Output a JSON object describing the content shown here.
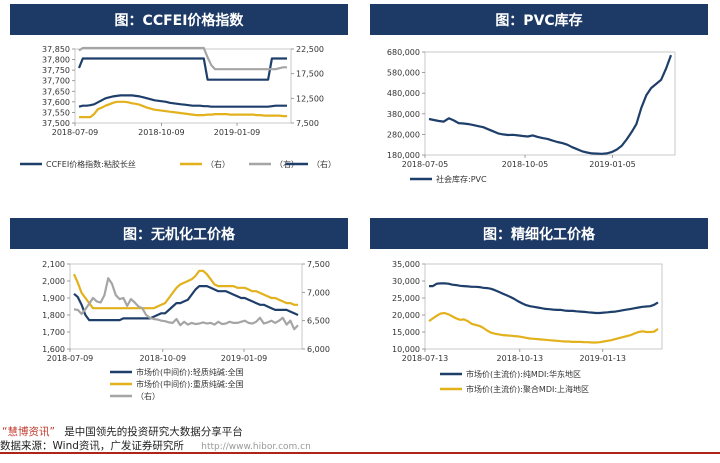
{
  "colors": {
    "navy": "#1f3f6b",
    "gold": "#e2b11c",
    "gray": "#a5a5a5",
    "banner": "#1d3a66",
    "red": "#c0392b"
  },
  "chart_data": [
    {
      "id": "ccfei",
      "type": "line",
      "title": "图：CCFEI价格指数",
      "x_ticks": [
        "2018-07-09",
        "2018-10-09",
        "2019-01-09"
      ],
      "left_axis": {
        "ticks": [
          37500,
          37550,
          37600,
          37650,
          37700,
          37750,
          37800,
          37850
        ],
        "labels": [
          "37,500",
          "37,550",
          "37,600",
          "37,650",
          "37,700",
          "37,750",
          "37,800",
          "37,850"
        ],
        "ylim": [
          37500,
          37850
        ]
      },
      "right_axis": {
        "ticks": [
          7500,
          12500,
          17500,
          22500
        ],
        "labels": [
          "7,500",
          "12,500",
          "17,500",
          "22,500"
        ],
        "ylim": [
          7500,
          22500
        ]
      },
      "n": 56,
      "series": [
        {
          "name": "CCFEI价格指数:粘胶长丝",
          "axis": "left",
          "color": "navy",
          "values": [
            37760,
            37805,
            37805,
            37805,
            37805,
            37805,
            37805,
            37805,
            37805,
            37805,
            37805,
            37805,
            37805,
            37805,
            37805,
            37805,
            37805,
            37805,
            37805,
            37805,
            37805,
            37805,
            37805,
            37805,
            37805,
            37805,
            37805,
            37805,
            37805,
            37805,
            37805,
            37805,
            37805,
            37805,
            37705,
            37705,
            37705,
            37705,
            37705,
            37705,
            37705,
            37705,
            37705,
            37705,
            37705,
            37705,
            37705,
            37705,
            37705,
            37705,
            37705,
            37805,
            37805,
            37805,
            37805,
            37805
          ]
        },
        {
          "name": "（右）",
          "axis": "right",
          "color": "gold",
          "values": [
            8700,
            8700,
            8700,
            8700,
            9300,
            10300,
            10600,
            11000,
            11300,
            11600,
            11800,
            11800,
            11800,
            11700,
            11500,
            11400,
            11200,
            10900,
            10600,
            10400,
            10200,
            10100,
            10000,
            9900,
            9800,
            9700,
            9600,
            9500,
            9400,
            9300,
            9200,
            9100,
            9100,
            9100,
            9200,
            9200,
            9300,
            9300,
            9300,
            9300,
            9200,
            9200,
            9200,
            9200,
            9200,
            9200,
            9200,
            9100,
            9100,
            9000,
            9000,
            9000,
            9000,
            9000,
            8900,
            8900
          ]
        },
        {
          "name": "（右）",
          "axis": "right",
          "color": "gray",
          "values": [
            22200,
            22700,
            22700,
            22700,
            22700,
            22700,
            22700,
            22700,
            22700,
            22700,
            22700,
            22700,
            22700,
            22700,
            22700,
            22700,
            22700,
            22700,
            22700,
            22700,
            22700,
            22700,
            22700,
            22700,
            22700,
            22700,
            22700,
            22700,
            22700,
            22700,
            22700,
            22700,
            22700,
            22700,
            20800,
            19200,
            18400,
            18400,
            18400,
            18400,
            18400,
            18400,
            18400,
            18400,
            18400,
            18400,
            18400,
            18400,
            18400,
            18400,
            18400,
            18400,
            18400,
            18600,
            18800,
            18800
          ]
        },
        {
          "name": "（右）",
          "axis": "right",
          "color": "navy",
          "values": [
            10800,
            11000,
            11000,
            11100,
            11300,
            11700,
            12100,
            12500,
            12700,
            12900,
            13000,
            13100,
            13100,
            13100,
            13100,
            13000,
            12900,
            12700,
            12500,
            12300,
            12100,
            12000,
            11900,
            11800,
            11600,
            11500,
            11400,
            11300,
            11200,
            11100,
            11000,
            11000,
            11000,
            10900,
            10900,
            10800,
            10800,
            10800,
            10800,
            10800,
            10800,
            10800,
            10800,
            10800,
            10800,
            10800,
            10800,
            10800,
            10800,
            10800,
            10800,
            10900,
            11000,
            11000,
            11000,
            11000
          ]
        }
      ]
    },
    {
      "id": "pvc",
      "type": "line",
      "title": "图：PVC库存",
      "x_ticks": [
        "2018-07-05",
        "2018-10-05",
        "2019-01-05"
      ],
      "left_axis": {
        "ticks": [
          180000,
          280000,
          380000,
          480000,
          580000,
          680000
        ],
        "labels": [
          "180,000",
          "280,000",
          "380,000",
          "480,000",
          "580,000",
          "680,000"
        ],
        "ylim": [
          180000,
          680000
        ]
      },
      "n": 50,
      "series": [
        {
          "name": "社会库存:PVC",
          "axis": "left",
          "color": "navy",
          "values": [
            355000,
            350000,
            345000,
            342000,
            358000,
            348000,
            335000,
            333000,
            330000,
            325000,
            320000,
            315000,
            305000,
            295000,
            285000,
            280000,
            277000,
            278000,
            275000,
            272000,
            270000,
            275000,
            268000,
            262000,
            258000,
            250000,
            243000,
            238000,
            230000,
            218000,
            208000,
            198000,
            192000,
            188000,
            187000,
            186000,
            188000,
            194000,
            206000,
            224000,
            255000,
            290000,
            330000,
            410000,
            470000,
            505000,
            525000,
            545000,
            600000,
            665000
          ]
        }
      ]
    },
    {
      "id": "inorganic",
      "type": "line",
      "title": "图：无机化工价格",
      "x_ticks": [
        "2018-07-09",
        "2018-10-09",
        "2019-01-09"
      ],
      "left_axis": {
        "ticks": [
          1600,
          1700,
          1800,
          1900,
          2000,
          2100
        ],
        "labels": [
          "1,600",
          "1,700",
          "1,800",
          "1,900",
          "2,000",
          "2,100"
        ],
        "ylim": [
          1600,
          2100
        ]
      },
      "right_axis": {
        "ticks": [
          6000,
          6500,
          7000,
          7500
        ],
        "labels": [
          "6,000",
          "6,500",
          "7,000",
          "7,500"
        ],
        "ylim": [
          6000,
          7500
        ]
      },
      "n": 60,
      "series": [
        {
          "name": "市场价(中间价):轻质纯碱:全国",
          "axis": "left",
          "color": "navy",
          "values": [
            1925,
            1905,
            1860,
            1800,
            1770,
            1770,
            1770,
            1770,
            1770,
            1770,
            1770,
            1770,
            1770,
            1780,
            1780,
            1780,
            1780,
            1780,
            1780,
            1780,
            1780,
            1790,
            1800,
            1810,
            1810,
            1830,
            1850,
            1870,
            1870,
            1880,
            1890,
            1920,
            1950,
            1970,
            1970,
            1970,
            1960,
            1950,
            1940,
            1940,
            1940,
            1930,
            1920,
            1910,
            1900,
            1900,
            1890,
            1880,
            1870,
            1860,
            1860,
            1850,
            1840,
            1830,
            1830,
            1830,
            1830,
            1820,
            1810,
            1800
          ]
        },
        {
          "name": "市场价(中间价):重质纯碱:全国",
          "axis": "left",
          "color": "gold",
          "values": [
            2040,
            1990,
            1930,
            1900,
            1870,
            1840,
            1840,
            1840,
            1840,
            1840,
            1840,
            1840,
            1840,
            1840,
            1840,
            1840,
            1840,
            1840,
            1840,
            1840,
            1840,
            1840,
            1850,
            1860,
            1870,
            1900,
            1930,
            1960,
            1980,
            1990,
            2000,
            2010,
            2030,
            2060,
            2060,
            2040,
            2010,
            1980,
            1970,
            1970,
            1970,
            1970,
            1970,
            1960,
            1960,
            1960,
            1950,
            1940,
            1940,
            1930,
            1920,
            1910,
            1900,
            1900,
            1890,
            1880,
            1870,
            1870,
            1860,
            1860
          ]
        },
        {
          "name": "（右）",
          "axis": "right",
          "color": "gray",
          "values": [
            6700,
            6690,
            6620,
            6700,
            6800,
            6900,
            6840,
            6820,
            6950,
            7250,
            7150,
            6950,
            6880,
            6900,
            6760,
            6880,
            6820,
            6750,
            6720,
            6600,
            6550,
            6530,
            6520,
            6500,
            6490,
            6470,
            6460,
            6530,
            6420,
            6480,
            6430,
            6460,
            6440,
            6450,
            6470,
            6450,
            6460,
            6430,
            6480,
            6440,
            6450,
            6480,
            6460,
            6460,
            6480,
            6500,
            6460,
            6450,
            6480,
            6550,
            6450,
            6470,
            6500,
            6460,
            6500,
            6550,
            6430,
            6500,
            6350,
            6420
          ]
        }
      ]
    },
    {
      "id": "fine",
      "type": "line",
      "title": "图：精细化工价格",
      "x_ticks": [
        "2018-07-13",
        "2018-10-13",
        "2019-01-13"
      ],
      "left_axis": {
        "ticks": [
          10000,
          15000,
          20000,
          25000,
          30000,
          35000
        ],
        "labels": [
          "10,000",
          "15,000",
          "20,000",
          "25,000",
          "30,000",
          "35,000"
        ],
        "ylim": [
          10000,
          35000
        ]
      },
      "n": 60,
      "series": [
        {
          "name": "市场价(主流价):纯MDI:华东地区",
          "axis": "left",
          "color": "navy",
          "values": [
            28500,
            28500,
            29200,
            29300,
            29300,
            29200,
            28900,
            28800,
            28600,
            28500,
            28400,
            28300,
            28300,
            28200,
            28000,
            27900,
            27700,
            27300,
            26800,
            26300,
            25800,
            25300,
            24700,
            24000,
            23400,
            22900,
            22600,
            22400,
            22200,
            22000,
            21800,
            21700,
            21600,
            21500,
            21500,
            21300,
            21200,
            21200,
            21100,
            21000,
            20900,
            20800,
            20700,
            20600,
            20600,
            20700,
            20800,
            20900,
            21000,
            21200,
            21400,
            21600,
            21800,
            22000,
            22200,
            22400,
            22500,
            22600,
            23000,
            23700
          ]
        },
        {
          "name": "市场价(主流价):聚合MDI:上海地区",
          "axis": "left",
          "color": "gold",
          "values": [
            18200,
            19000,
            19800,
            20400,
            20600,
            20200,
            19600,
            19000,
            18600,
            18700,
            18200,
            17400,
            17100,
            16800,
            16200,
            15400,
            14800,
            14500,
            14300,
            14100,
            14000,
            13900,
            13800,
            13700,
            13500,
            13300,
            13100,
            13000,
            12900,
            12800,
            12700,
            12600,
            12500,
            12400,
            12300,
            12200,
            12200,
            12100,
            12100,
            12100,
            12000,
            12000,
            11900,
            11900,
            12000,
            12200,
            12400,
            12600,
            12900,
            13200,
            13500,
            13800,
            14100,
            14600,
            15000,
            15200,
            15000,
            15000,
            15100,
            15900
          ]
        }
      ]
    }
  ],
  "panels": {
    "ccfei": {
      "title": "图：CCFEI价格指数",
      "legend": [
        "CCFEI价格指数:粘胶长丝",
        "（右）",
        "（右）",
        "（右）"
      ]
    },
    "pvc": {
      "title": "图：PVC库存",
      "legend": [
        "社会库存:PVC"
      ]
    },
    "inorganic": {
      "title": "图：无机化工价格",
      "legend": [
        "市场价(中间价):轻质纯碱:全国",
        "市场价(中间价):重质纯碱:全国",
        "（右）"
      ]
    },
    "fine": {
      "title": "图：精细化工价格",
      "legend": [
        "市场价(主流价):纯MDI:华东地区",
        "市场价(主流价):聚合MDI:上海地区"
      ]
    }
  },
  "footer": {
    "brand": "“慧博资讯”",
    "slogan": "是中国领先的投资研究大数据分享平台",
    "source": "数据来源：Wind资讯，广发证券研究所",
    "url_fragment": "http://www.hibor.com.cn"
  }
}
